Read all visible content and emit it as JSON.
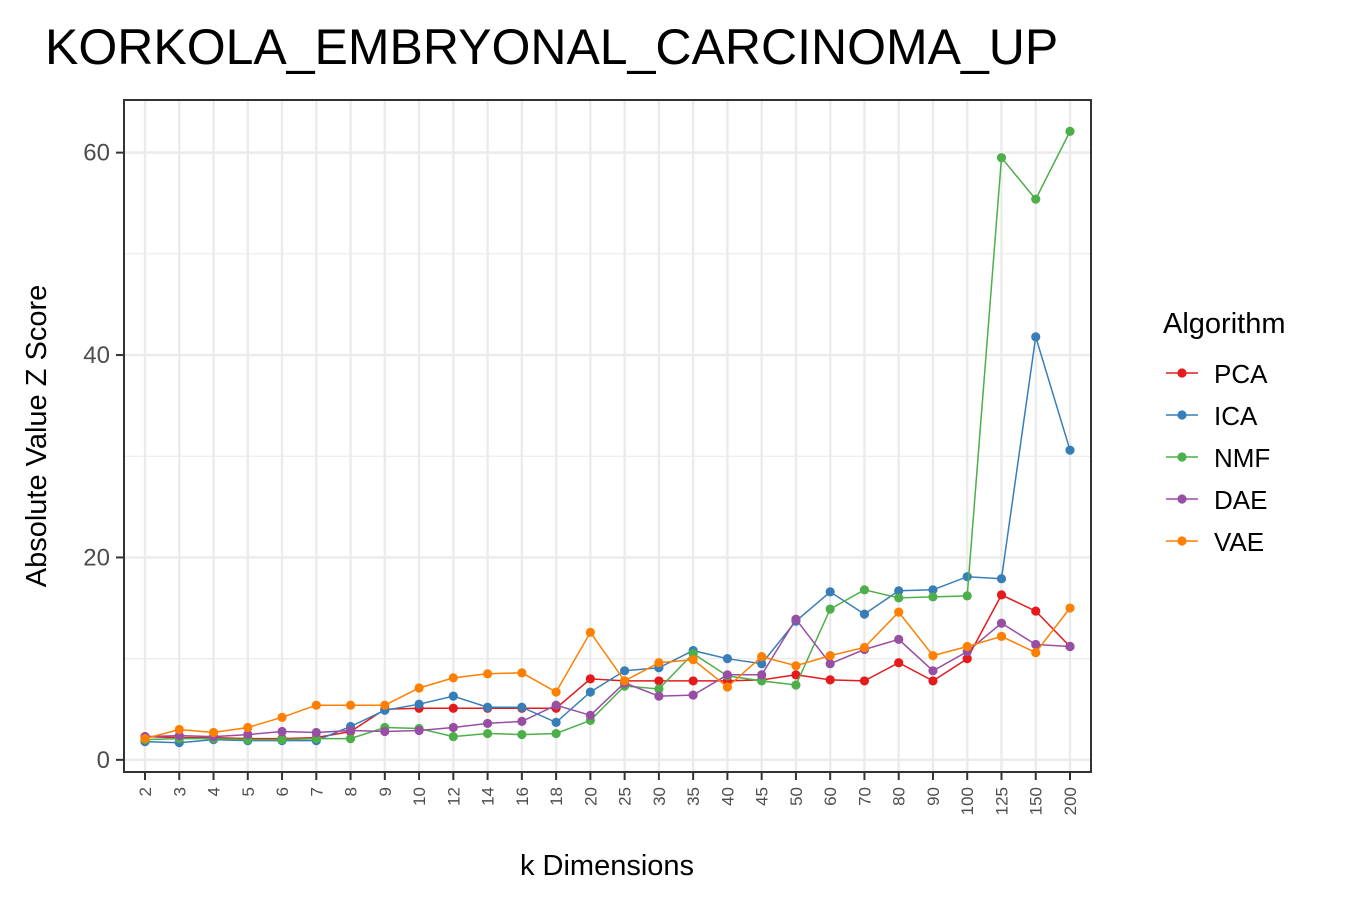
{
  "chart_data": {
    "type": "line",
    "title": "KORKOLA_EMBRYONAL_CARCINOMA_UP",
    "xlabel": "k Dimensions",
    "ylabel": "Absolute Value Z Score",
    "categories": [
      "2",
      "3",
      "4",
      "5",
      "6",
      "7",
      "8",
      "9",
      "10",
      "12",
      "14",
      "16",
      "18",
      "20",
      "25",
      "30",
      "35",
      "40",
      "45",
      "50",
      "60",
      "70",
      "80",
      "90",
      "100",
      "125",
      "150",
      "200"
    ],
    "yticks": [
      0,
      20,
      40,
      60
    ],
    "ylim": [
      -1.2,
      65.2
    ],
    "grid": true,
    "legend": {
      "title": "Algorithm",
      "position": "right"
    },
    "series": [
      {
        "name": "PCA",
        "color": "#e41a1c",
        "values": [
          2.3,
          2.2,
          2.2,
          2.1,
          2.1,
          2.2,
          2.8,
          5.0,
          5.1,
          5.1,
          5.1,
          5.1,
          5.1,
          8.0,
          7.8,
          7.8,
          7.8,
          7.8,
          7.9,
          8.4,
          7.9,
          7.8,
          9.6,
          7.8,
          10.0,
          16.3,
          14.7,
          11.2
        ]
      },
      {
        "name": "ICA",
        "color": "#377eb8",
        "values": [
          1.8,
          1.7,
          2.0,
          1.9,
          1.9,
          1.9,
          3.3,
          4.9,
          5.5,
          6.3,
          5.2,
          5.2,
          3.7,
          6.7,
          8.8,
          9.1,
          10.8,
          10.0,
          9.5,
          13.7,
          16.6,
          14.4,
          16.7,
          16.8,
          18.1,
          17.9,
          41.8,
          30.6
        ]
      },
      {
        "name": "NMF",
        "color": "#4daf4a",
        "values": [
          2.0,
          2.1,
          2.1,
          2.0,
          2.0,
          2.1,
          2.1,
          3.2,
          3.1,
          2.3,
          2.6,
          2.5,
          2.6,
          3.9,
          7.3,
          7.0,
          10.5,
          8.3,
          7.8,
          7.4,
          14.9,
          16.8,
          16.0,
          16.1,
          16.2,
          59.5,
          55.4,
          62.1
        ]
      },
      {
        "name": "DAE",
        "color": "#984ea3",
        "values": [
          2.3,
          2.4,
          2.3,
          2.5,
          2.8,
          2.7,
          2.9,
          2.8,
          2.9,
          3.2,
          3.6,
          3.8,
          5.4,
          4.4,
          7.6,
          6.3,
          6.4,
          8.4,
          8.4,
          13.9,
          9.5,
          10.9,
          11.9,
          8.8,
          10.7,
          13.5,
          11.4,
          11.2
        ]
      },
      {
        "name": "VAE",
        "color": "#ff7f00",
        "values": [
          2.1,
          3.0,
          2.7,
          3.2,
          4.2,
          5.4,
          5.4,
          5.4,
          7.1,
          8.1,
          8.5,
          8.6,
          6.7,
          12.6,
          7.8,
          9.6,
          9.9,
          7.2,
          10.2,
          9.3,
          10.3,
          11.1,
          14.6,
          10.3,
          11.2,
          12.2,
          10.6,
          15.0
        ]
      }
    ]
  }
}
